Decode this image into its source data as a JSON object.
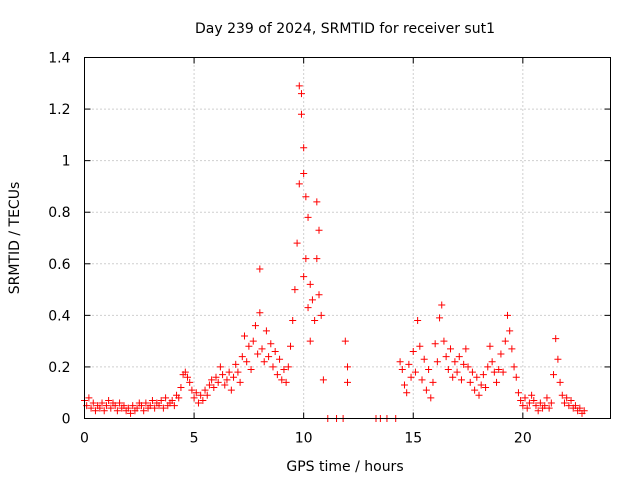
{
  "chart_data": {
    "type": "scatter",
    "title": "Day 239 of 2024, SRMTID for receiver sut1",
    "xlabel": "GPS time / hours",
    "ylabel": "SRMTID / TECUs",
    "xlim": [
      0,
      24
    ],
    "ylim": [
      0,
      1.4
    ],
    "x_ticks": [
      0,
      5,
      10,
      15,
      20
    ],
    "y_ticks": [
      0,
      0.2,
      0.4,
      0.6,
      0.8,
      1,
      1.2,
      1.4
    ],
    "x_tick_labels": [
      "0",
      "5",
      "10",
      "15",
      "20"
    ],
    "y_tick_labels": [
      "0",
      "0.2",
      "0.4",
      "0.6",
      "0.8",
      "1",
      "1.2",
      "1.4"
    ],
    "grid": true,
    "marker": "plus",
    "color": "#ff0000",
    "series": [
      {
        "name": "SRMTID",
        "points": [
          [
            0.0,
            0.07
          ],
          [
            0.1,
            0.05
          ],
          [
            0.2,
            0.08
          ],
          [
            0.3,
            0.04
          ],
          [
            0.4,
            0.06
          ],
          [
            0.5,
            0.03
          ],
          [
            0.6,
            0.05
          ],
          [
            0.7,
            0.04
          ],
          [
            0.8,
            0.06
          ],
          [
            0.9,
            0.03
          ],
          [
            1.0,
            0.05
          ],
          [
            1.1,
            0.07
          ],
          [
            1.2,
            0.04
          ],
          [
            1.3,
            0.06
          ],
          [
            1.4,
            0.05
          ],
          [
            1.5,
            0.03
          ],
          [
            1.6,
            0.06
          ],
          [
            1.7,
            0.04
          ],
          [
            1.8,
            0.05
          ],
          [
            1.9,
            0.03
          ],
          [
            2.0,
            0.04
          ],
          [
            2.1,
            0.02
          ],
          [
            2.2,
            0.05
          ],
          [
            2.3,
            0.03
          ],
          [
            2.4,
            0.04
          ],
          [
            2.5,
            0.06
          ],
          [
            2.6,
            0.05
          ],
          [
            2.7,
            0.03
          ],
          [
            2.8,
            0.06
          ],
          [
            2.9,
            0.04
          ],
          [
            3.0,
            0.05
          ],
          [
            3.1,
            0.07
          ],
          [
            3.2,
            0.04
          ],
          [
            3.3,
            0.06
          ],
          [
            3.4,
            0.05
          ],
          [
            3.5,
            0.07
          ],
          [
            3.6,
            0.04
          ],
          [
            3.7,
            0.08
          ],
          [
            3.8,
            0.05
          ],
          [
            3.9,
            0.06
          ],
          [
            4.0,
            0.07
          ],
          [
            4.1,
            0.05
          ],
          [
            4.2,
            0.09
          ],
          [
            4.3,
            0.08
          ],
          [
            4.4,
            0.12
          ],
          [
            4.5,
            0.17
          ],
          [
            4.6,
            0.18
          ],
          [
            4.7,
            0.16
          ],
          [
            4.8,
            0.14
          ],
          [
            4.9,
            0.11
          ],
          [
            5.0,
            0.08
          ],
          [
            5.1,
            0.1
          ],
          [
            5.2,
            0.06
          ],
          [
            5.3,
            0.09
          ],
          [
            5.4,
            0.07
          ],
          [
            5.5,
            0.11
          ],
          [
            5.6,
            0.09
          ],
          [
            5.7,
            0.13
          ],
          [
            5.8,
            0.15
          ],
          [
            5.9,
            0.12
          ],
          [
            6.0,
            0.16
          ],
          [
            6.1,
            0.14
          ],
          [
            6.2,
            0.2
          ],
          [
            6.3,
            0.17
          ],
          [
            6.4,
            0.13
          ],
          [
            6.5,
            0.15
          ],
          [
            6.6,
            0.18
          ],
          [
            6.7,
            0.11
          ],
          [
            6.8,
            0.16
          ],
          [
            6.9,
            0.21
          ],
          [
            7.0,
            0.18
          ],
          [
            7.1,
            0.14
          ],
          [
            7.2,
            0.24
          ],
          [
            7.3,
            0.32
          ],
          [
            7.4,
            0.22
          ],
          [
            7.5,
            0.28
          ],
          [
            7.6,
            0.19
          ],
          [
            7.7,
            0.3
          ],
          [
            7.8,
            0.36
          ],
          [
            7.9,
            0.25
          ],
          [
            8.0,
            0.58
          ],
          [
            8.0,
            0.41
          ],
          [
            8.1,
            0.27
          ],
          [
            8.2,
            0.22
          ],
          [
            8.3,
            0.34
          ],
          [
            8.4,
            0.24
          ],
          [
            8.5,
            0.29
          ],
          [
            8.6,
            0.2
          ],
          [
            8.7,
            0.26
          ],
          [
            8.8,
            0.17
          ],
          [
            8.9,
            0.23
          ],
          [
            9.0,
            0.15
          ],
          [
            9.1,
            0.19
          ],
          [
            9.2,
            0.14
          ],
          [
            9.3,
            0.2
          ],
          [
            9.4,
            0.28
          ],
          [
            9.5,
            0.38
          ],
          [
            9.6,
            0.5
          ],
          [
            9.7,
            0.68
          ],
          [
            9.8,
            0.91
          ],
          [
            9.8,
            1.29
          ],
          [
            9.9,
            1.26
          ],
          [
            9.9,
            1.18
          ],
          [
            10.0,
            1.05
          ],
          [
            10.0,
            0.95
          ],
          [
            10.0,
            0.55
          ],
          [
            10.1,
            0.86
          ],
          [
            10.1,
            0.62
          ],
          [
            10.2,
            0.78
          ],
          [
            10.2,
            0.43
          ],
          [
            10.3,
            0.52
          ],
          [
            10.3,
            0.3
          ],
          [
            10.4,
            0.46
          ],
          [
            10.5,
            0.38
          ],
          [
            10.6,
            0.84
          ],
          [
            10.6,
            0.62
          ],
          [
            10.7,
            0.73
          ],
          [
            10.7,
            0.48
          ],
          [
            10.8,
            0.4
          ],
          [
            10.9,
            0.15
          ],
          [
            11.1,
            0.0
          ],
          [
            11.5,
            0.0
          ],
          [
            11.8,
            0.0
          ],
          [
            11.9,
            0.3
          ],
          [
            12.0,
            0.2
          ],
          [
            12.0,
            0.14
          ],
          [
            13.3,
            0.0
          ],
          [
            13.5,
            0.0
          ],
          [
            13.8,
            0.0
          ],
          [
            14.2,
            0.0
          ],
          [
            14.4,
            0.22
          ],
          [
            14.5,
            0.19
          ],
          [
            14.6,
            0.13
          ],
          [
            14.7,
            0.1
          ],
          [
            14.8,
            0.21
          ],
          [
            14.9,
            0.16
          ],
          [
            15.0,
            0.26
          ],
          [
            15.1,
            0.18
          ],
          [
            15.2,
            0.38
          ],
          [
            15.3,
            0.28
          ],
          [
            15.4,
            0.15
          ],
          [
            15.5,
            0.23
          ],
          [
            15.6,
            0.11
          ],
          [
            15.7,
            0.19
          ],
          [
            15.8,
            0.08
          ],
          [
            15.9,
            0.14
          ],
          [
            16.0,
            0.29
          ],
          [
            16.1,
            0.22
          ],
          [
            16.2,
            0.39
          ],
          [
            16.3,
            0.44
          ],
          [
            16.4,
            0.3
          ],
          [
            16.5,
            0.24
          ],
          [
            16.6,
            0.19
          ],
          [
            16.7,
            0.27
          ],
          [
            16.8,
            0.16
          ],
          [
            16.9,
            0.22
          ],
          [
            17.0,
            0.18
          ],
          [
            17.1,
            0.24
          ],
          [
            17.2,
            0.15
          ],
          [
            17.3,
            0.21
          ],
          [
            17.4,
            0.27
          ],
          [
            17.5,
            0.2
          ],
          [
            17.6,
            0.14
          ],
          [
            17.7,
            0.18
          ],
          [
            17.8,
            0.11
          ],
          [
            17.9,
            0.16
          ],
          [
            18.0,
            0.09
          ],
          [
            18.1,
            0.13
          ],
          [
            18.2,
            0.17
          ],
          [
            18.3,
            0.12
          ],
          [
            18.4,
            0.2
          ],
          [
            18.5,
            0.28
          ],
          [
            18.6,
            0.22
          ],
          [
            18.7,
            0.18
          ],
          [
            18.8,
            0.14
          ],
          [
            18.9,
            0.19
          ],
          [
            19.0,
            0.25
          ],
          [
            19.1,
            0.18
          ],
          [
            19.2,
            0.3
          ],
          [
            19.3,
            0.4
          ],
          [
            19.4,
            0.34
          ],
          [
            19.5,
            0.27
          ],
          [
            19.6,
            0.2
          ],
          [
            19.7,
            0.16
          ],
          [
            19.8,
            0.1
          ],
          [
            19.9,
            0.07
          ],
          [
            20.0,
            0.05
          ],
          [
            20.1,
            0.08
          ],
          [
            20.2,
            0.04
          ],
          [
            20.3,
            0.06
          ],
          [
            20.4,
            0.09
          ],
          [
            20.5,
            0.07
          ],
          [
            20.6,
            0.05
          ],
          [
            20.7,
            0.03
          ],
          [
            20.8,
            0.06
          ],
          [
            20.9,
            0.04
          ],
          [
            21.0,
            0.05
          ],
          [
            21.1,
            0.08
          ],
          [
            21.2,
            0.04
          ],
          [
            21.3,
            0.06
          ],
          [
            21.4,
            0.17
          ],
          [
            21.5,
            0.31
          ],
          [
            21.6,
            0.23
          ],
          [
            21.7,
            0.14
          ],
          [
            21.8,
            0.09
          ],
          [
            21.9,
            0.06
          ],
          [
            22.0,
            0.08
          ],
          [
            22.1,
            0.05
          ],
          [
            22.2,
            0.07
          ],
          [
            22.3,
            0.04
          ],
          [
            22.4,
            0.05
          ],
          [
            22.5,
            0.03
          ],
          [
            22.6,
            0.04
          ],
          [
            22.7,
            0.02
          ],
          [
            22.8,
            0.03
          ]
        ]
      }
    ]
  }
}
